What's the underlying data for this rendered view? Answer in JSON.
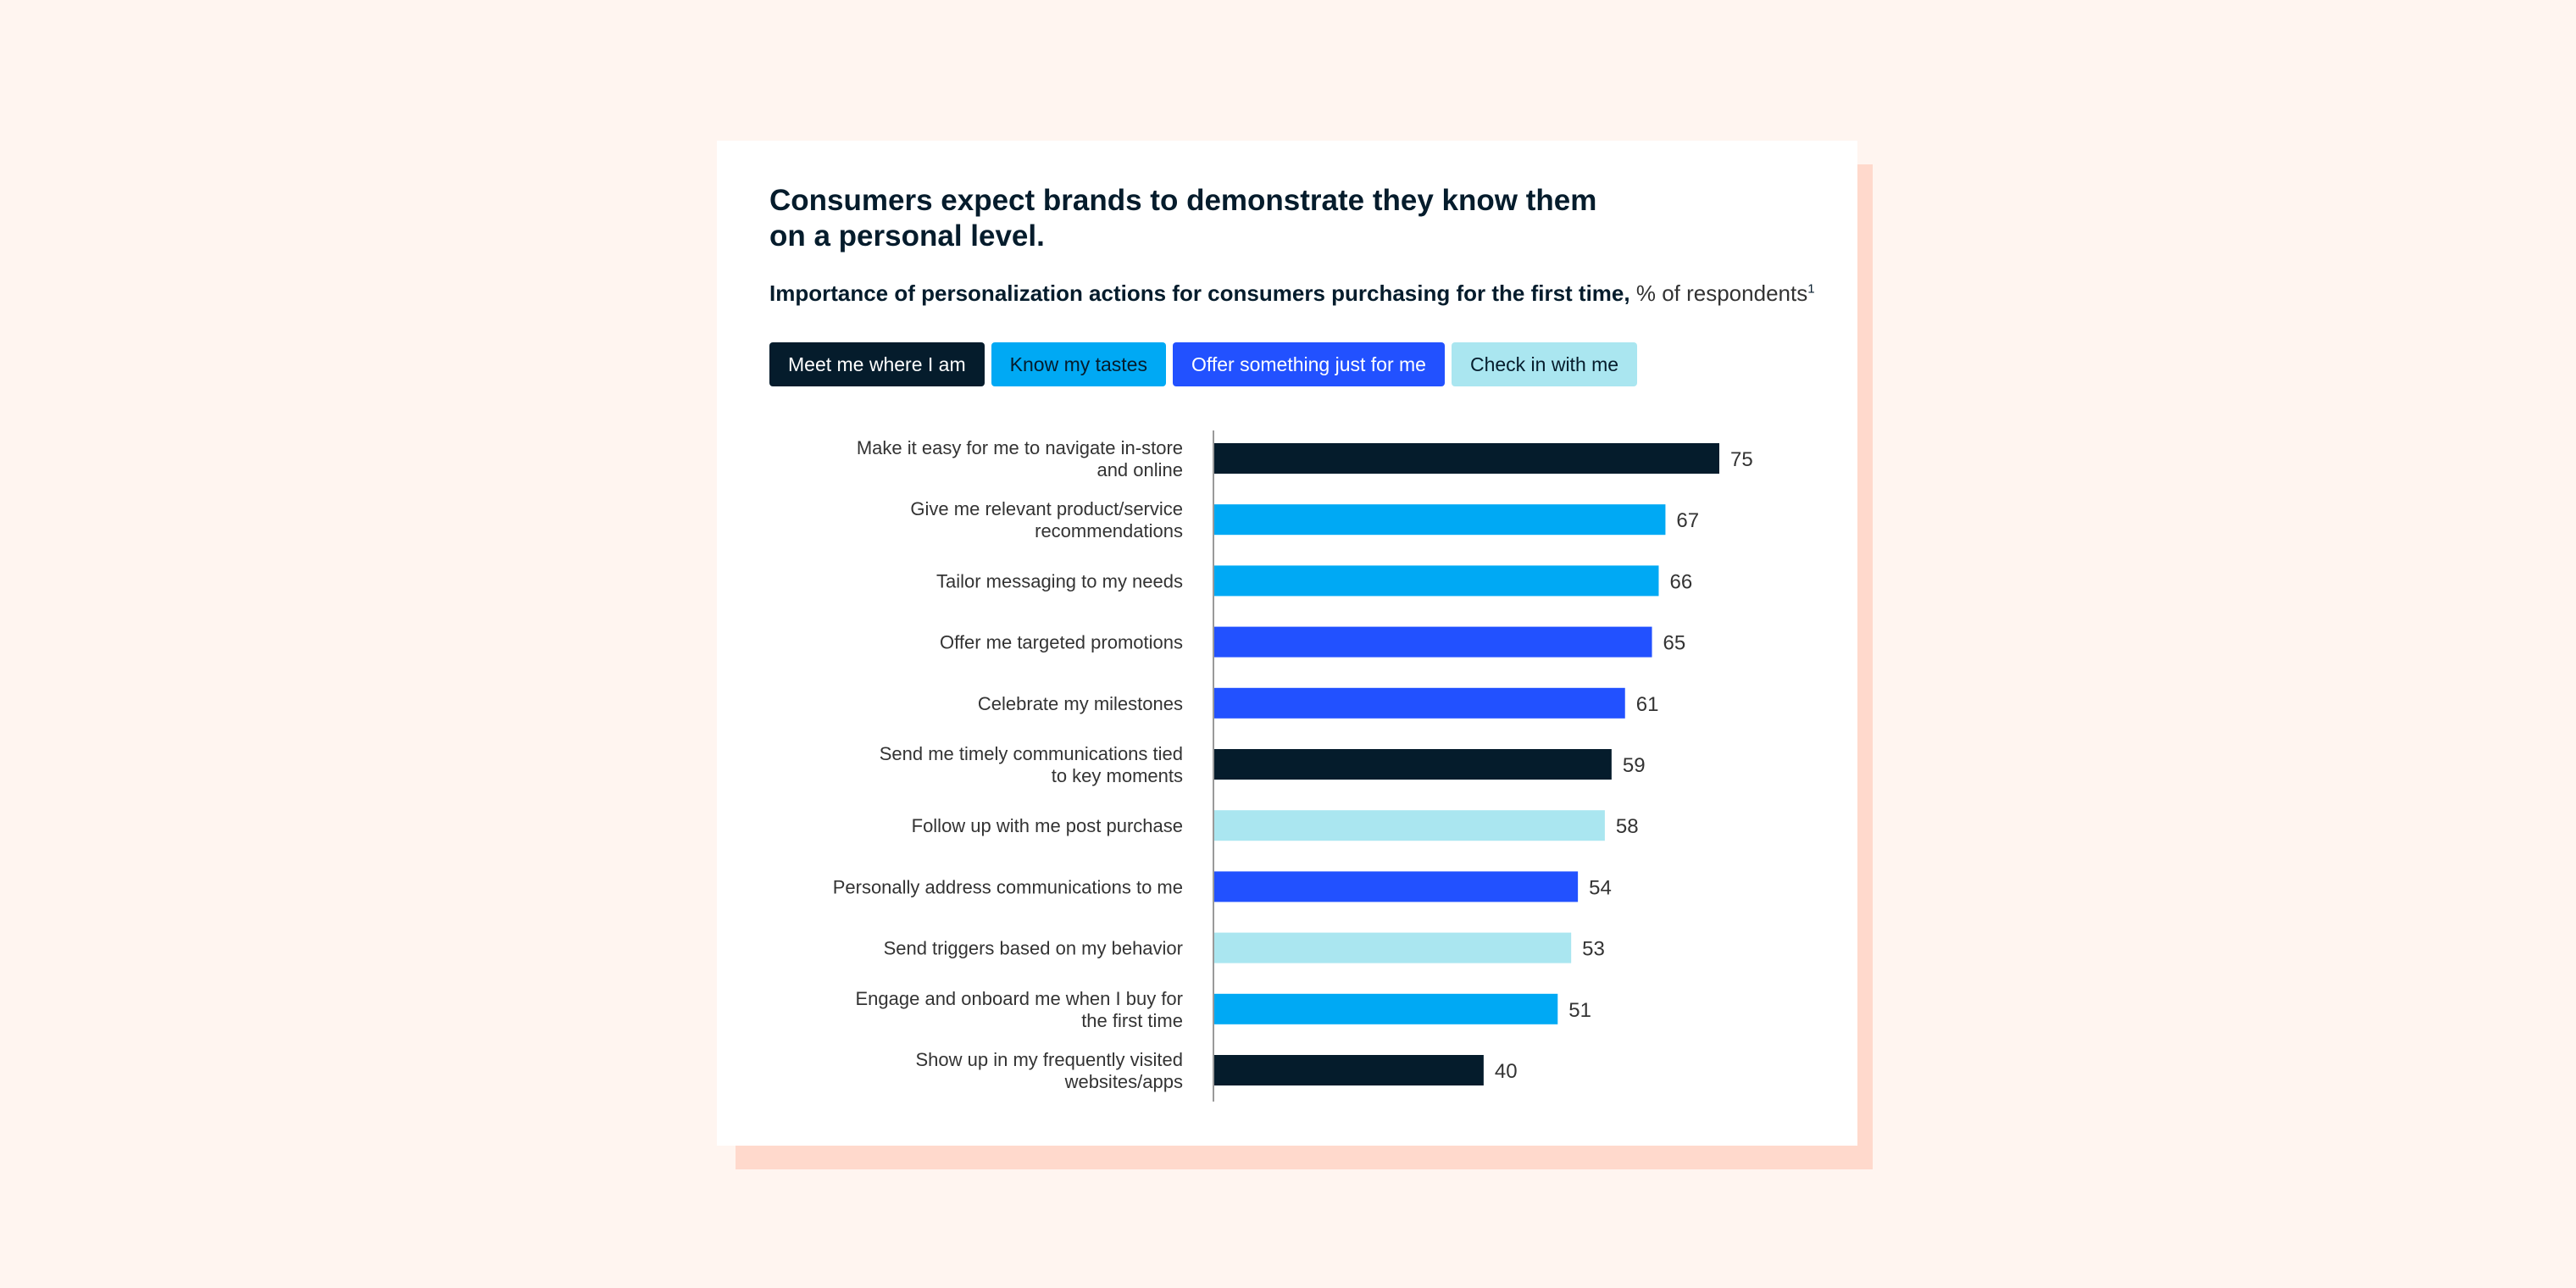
{
  "page": {
    "title": "Consumers expect brands to demonstrate they know them on a personal level.",
    "subtitle_bold": "Importance of personalization actions for consumers purchasing for the first time,",
    "subtitle_regular": "% of respondents",
    "subtitle_footnote": "1"
  },
  "legend": [
    {
      "label": "Meet me where I am",
      "color": "#051c2c",
      "text_color": "#ffffff"
    },
    {
      "label": "Know my tastes",
      "color": "#00a9f4",
      "text_color": "#051c2c"
    },
    {
      "label": "Offer something just for me",
      "color": "#2251ff",
      "text_color": "#ffffff"
    },
    {
      "label": "Check in with me",
      "color": "#aae6f0",
      "text_color": "#051c2c"
    }
  ],
  "chart_data": {
    "type": "bar",
    "orientation": "horizontal",
    "title": "Consumers expect brands to demonstrate they know them on a personal level.",
    "xlim": [
      0,
      100
    ],
    "grid": false,
    "legend_position": "top-left",
    "categories": [
      [
        "Make it easy for me to navigate in-store",
        "and online"
      ],
      [
        "Give me relevant product/service",
        "recommendations"
      ],
      [
        "Tailor messaging to my needs"
      ],
      [
        "Offer me targeted promotions"
      ],
      [
        "Celebrate my milestones"
      ],
      [
        "Send me timely communications tied",
        "to key moments"
      ],
      [
        "Follow up with me post purchase"
      ],
      [
        "Personally address communications to me"
      ],
      [
        "Send triggers based on my behavior"
      ],
      [
        "Engage and onboard me when I buy for",
        "the first time"
      ],
      [
        "Show up in my frequently visited",
        "websites/apps"
      ]
    ],
    "values": [
      75,
      67,
      66,
      65,
      61,
      59,
      58,
      54,
      53,
      51,
      40
    ],
    "groups": [
      "Meet me where I am",
      "Know my tastes",
      "Know my tastes",
      "Offer something just for me",
      "Offer something just for me",
      "Meet me where I am",
      "Check in with me",
      "Offer something just for me",
      "Check in with me",
      "Know my tastes",
      "Meet me where I am"
    ]
  }
}
